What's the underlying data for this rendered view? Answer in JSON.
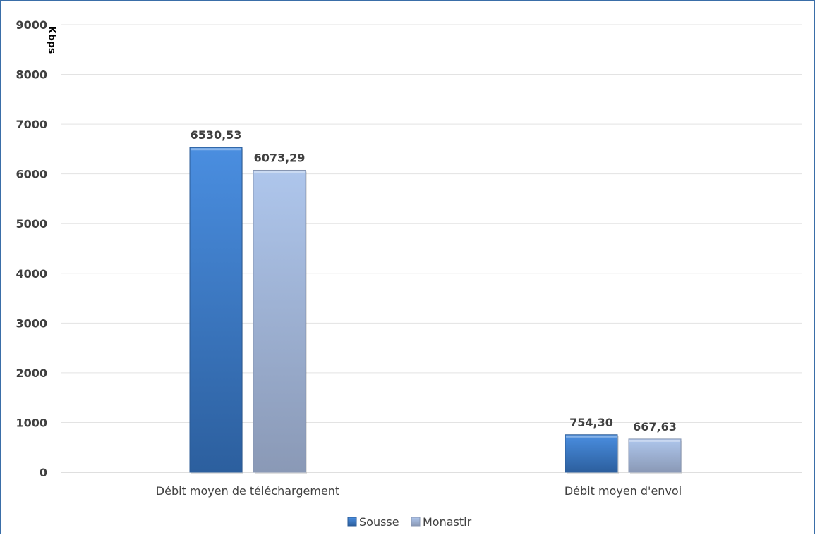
{
  "chart_data": {
    "type": "bar",
    "title": "",
    "xlabel": "",
    "ylabel": "Kbps",
    "ylim": [
      0,
      9000
    ],
    "yticks": [
      0,
      1000,
      2000,
      3000,
      4000,
      5000,
      6000,
      7000,
      8000,
      9000
    ],
    "grid": true,
    "legend_position": "bottom",
    "categories": [
      "Débit moyen de téléchargement",
      "Débit moyen d'envoi"
    ],
    "series": [
      {
        "name": "Sousse",
        "values": [
          6530.53,
          754.3
        ],
        "labels": [
          "6530,53",
          "754,30"
        ],
        "color_top": "#4a8ee0",
        "color_bottom": "#2c5f9e"
      },
      {
        "name": "Monastir",
        "values": [
          6073.29,
          667.63
        ],
        "labels": [
          "6073,29",
          "667,63"
        ],
        "color_top": "#aec6ec",
        "color_bottom": "#8a99b6"
      }
    ]
  }
}
